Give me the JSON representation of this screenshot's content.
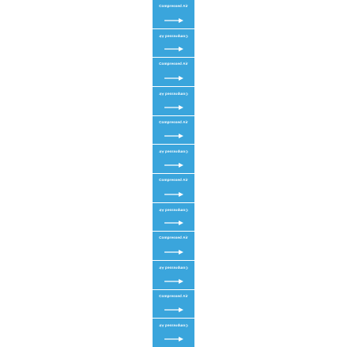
{
  "label_text": "Compressed Air",
  "band_color": "#3aa5dc",
  "text_color": "#ffffff",
  "arrow_icon": "arrow-right-icon",
  "segment_count": 12
}
